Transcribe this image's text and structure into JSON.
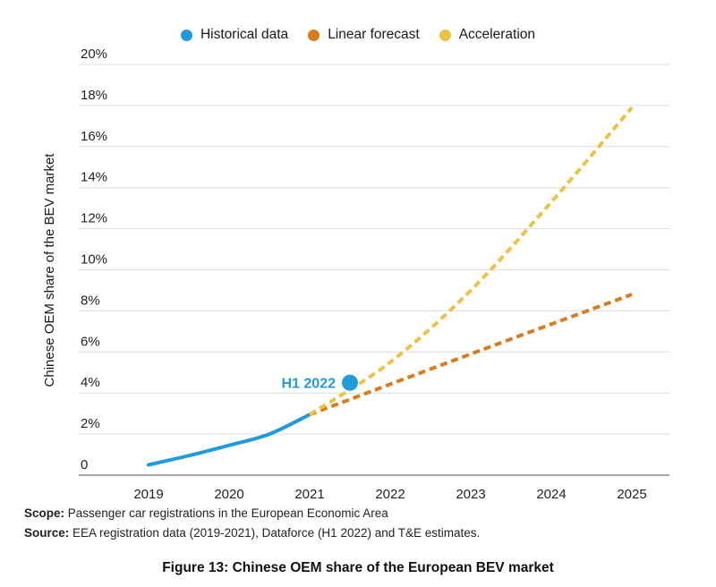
{
  "legend": {
    "items": [
      {
        "label": "Historical data",
        "color": "#1f9cd9"
      },
      {
        "label": "Linear forecast",
        "color": "#dc7a1e"
      },
      {
        "label": "Acceleration",
        "color": "#ecc344"
      }
    ]
  },
  "footer": {
    "scope_label": "Scope:",
    "scope_text": "Passenger car registrations in the European Economic Area",
    "source_label": "Source:",
    "source_text": "EEA registration data (2019-2021), Dataforce (H1 2022) and T&E estimates.",
    "caption": "Figure 13: Chinese OEM share of the European BEV market"
  },
  "chart_data": {
    "type": "line",
    "title": "",
    "xlabel": "",
    "ylabel": "Chinese OEM share of the BEV market",
    "xlim": [
      2018.13,
      2025.47
    ],
    "ylim": [
      0,
      20
    ],
    "x_ticks": [
      "2019",
      "2020",
      "2021",
      "2022",
      "2023",
      "2024",
      "2025"
    ],
    "y_ticks": [
      0,
      2,
      4,
      6,
      8,
      10,
      12,
      14,
      16,
      18,
      20
    ],
    "y_tick_suffix": "%",
    "grid": "horizontal",
    "legend_position": "top",
    "colors": {
      "gridline": "#dcdcdc",
      "axis_line": "#4d4d4d",
      "tick_text": "#222222",
      "axis_title_text": "#1a1a1a"
    },
    "series": [
      {
        "name": "Historical data",
        "style": "solid",
        "color": "#1f9cd9",
        "points": [
          [
            2019,
            0.5
          ],
          [
            2019.5,
            0.95
          ],
          [
            2020,
            1.45
          ],
          [
            2020.5,
            2.0
          ],
          [
            2021,
            2.95
          ]
        ]
      },
      {
        "name": "Linear forecast",
        "style": "dashed",
        "color": "#dc7a1e",
        "points": [
          [
            2021,
            2.95
          ],
          [
            2023,
            5.9
          ],
          [
            2025,
            8.8
          ]
        ]
      },
      {
        "name": "Acceleration",
        "style": "dashed",
        "color": "#ecc344",
        "points": [
          [
            2021,
            2.95
          ],
          [
            2022,
            5.5
          ],
          [
            2023,
            9.0
          ],
          [
            2024,
            13.3
          ],
          [
            2025,
            17.9
          ]
        ]
      }
    ],
    "annotation": {
      "label": "H1 2022",
      "x": 2021.5,
      "y": 4.5,
      "color": "#1f9cd9",
      "marker": "circle"
    }
  }
}
